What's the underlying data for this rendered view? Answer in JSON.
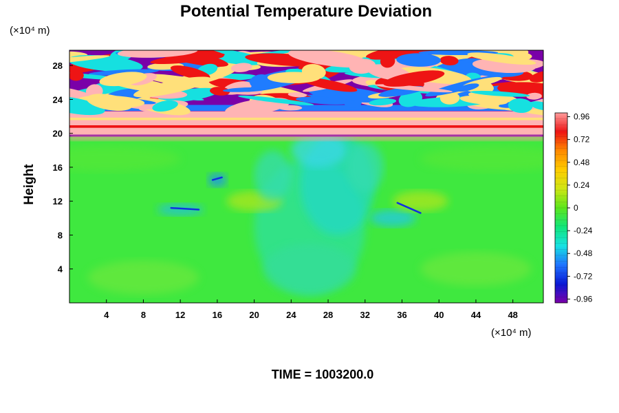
{
  "chart_data": {
    "type": "heatmap",
    "title": "Potential Temperature Deviation",
    "ylabel": "Height",
    "x_unit_label": "(×10⁴ m)",
    "y_unit_label": "(×10⁴ m)",
    "time_label": "TIME = 1003200.0",
    "x_ticks": [
      4,
      8,
      12,
      16,
      20,
      24,
      28,
      32,
      36,
      40,
      44,
      48
    ],
    "y_ticks": [
      4,
      8,
      12,
      16,
      20,
      24,
      28
    ],
    "xlim": [
      0,
      51.3
    ],
    "ylim": [
      0,
      29.8
    ],
    "colorbar": {
      "min": -1.0,
      "max": 1.0,
      "ticks": [
        {
          "value": 0.96,
          "label": "0.96"
        },
        {
          "value": 0.72,
          "label": "0.72"
        },
        {
          "value": 0.48,
          "label": "0.48"
        },
        {
          "value": 0.24,
          "label": "0.24"
        },
        {
          "value": 0.0,
          "label": "0"
        },
        {
          "value": -0.24,
          "label": "-0.24"
        },
        {
          "value": -0.48,
          "label": "-0.48"
        },
        {
          "value": -0.72,
          "label": "-0.72"
        },
        {
          "value": -0.96,
          "label": "-0.96"
        }
      ],
      "stops": [
        "#7a00a8",
        "#0a1ad6",
        "#1f74ff",
        "#17e2e2",
        "#12e67a",
        "#5ce61c",
        "#cfe614",
        "#ffcc00",
        "#ff8a00",
        "#ee1414",
        "#ff9c9c"
      ]
    },
    "colors": {
      "background_field": "#3fe83f",
      "upper_band_purple": "#7a00a8",
      "upper_band_pink": "#ffb4b4",
      "upper_band_blue": "#1f7cff",
      "upper_band_red": "#ee1414"
    }
  }
}
